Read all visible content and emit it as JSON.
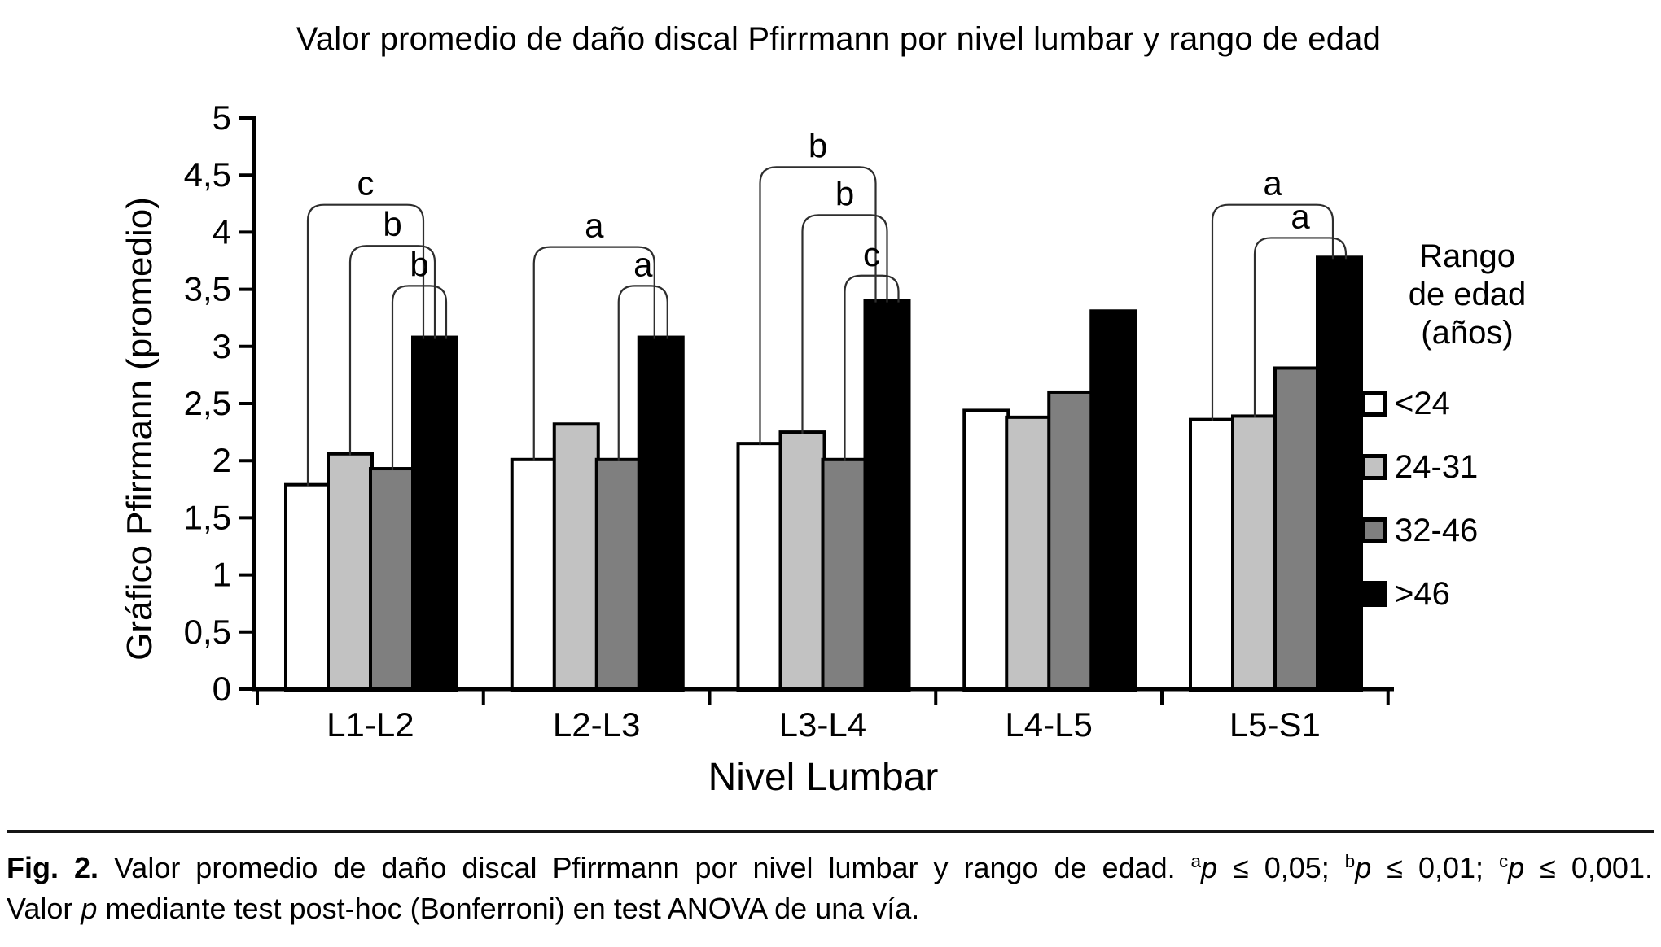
{
  "title": "Valor promedio de daño discal Pfirrmann por nivel lumbar y rango de edad",
  "y_axis": {
    "label": "Gráfico Pfirrmann (promedio)",
    "tick_labels": [
      "5",
      "4,5",
      "4",
      "3,5",
      "3",
      "2,5",
      "2",
      "1,5",
      "1",
      "0,5",
      "0"
    ],
    "tick_values": [
      5,
      4.5,
      4,
      3.5,
      3,
      2.5,
      2,
      1.5,
      1,
      0.5,
      0
    ]
  },
  "x_axis": {
    "label": "Nivel Lumbar"
  },
  "legend": {
    "title_lines": [
      "Rango",
      "de edad",
      "(años)"
    ],
    "items": [
      {
        "label": "<24",
        "color": "#ffffff"
      },
      {
        "label": "24-31",
        "color": "#c2c2c2"
      },
      {
        "label": "32-46",
        "color": "#7f7f7f"
      },
      {
        "label": ">46",
        "color": "#000000"
      }
    ]
  },
  "chart_data": {
    "type": "bar",
    "title": "Valor promedio de daño discal Pfirrmann por nivel lumbar y rango de edad",
    "xlabel": "Nivel Lumbar",
    "ylabel": "Gráfico Pfirrmann (promedio)",
    "ylim": [
      0,
      5
    ],
    "ytick_step": 0.5,
    "grid": false,
    "legend_position": "right",
    "categories": [
      "L1-L2",
      "L2-L3",
      "L3-L4",
      "L4-L5",
      "L5-S1"
    ],
    "series": [
      {
        "name": "<24",
        "color": "#ffffff",
        "values": [
          1.79,
          2.01,
          2.15,
          2.44,
          2.36
        ]
      },
      {
        "name": "24-31",
        "color": "#c2c2c2",
        "values": [
          2.06,
          2.32,
          2.25,
          2.38,
          2.39
        ]
      },
      {
        "name": "32-46",
        "color": "#7f7f7f",
        "values": [
          1.93,
          2.01,
          2.01,
          2.6,
          2.81
        ]
      },
      {
        "name": ">46",
        "color": "#000000",
        "values": [
          3.08,
          3.08,
          3.4,
          3.31,
          3.78
        ]
      }
    ],
    "significance_brackets": [
      {
        "category": 0,
        "from": 0,
        "to": 3,
        "label": "c",
        "level": 4.24
      },
      {
        "category": 0,
        "from": 1,
        "to": 3,
        "label": "b",
        "level": 3.88
      },
      {
        "category": 0,
        "from": 2,
        "to": 3,
        "label": "b",
        "level": 3.53
      },
      {
        "category": 1,
        "from": 0,
        "to": 3,
        "label": "a",
        "level": 3.87
      },
      {
        "category": 1,
        "from": 2,
        "to": 3,
        "label": "a",
        "level": 3.53
      },
      {
        "category": 2,
        "from": 0,
        "to": 3,
        "label": "b",
        "level": 4.57
      },
      {
        "category": 2,
        "from": 1,
        "to": 3,
        "label": "b",
        "level": 4.15
      },
      {
        "category": 2,
        "from": 2,
        "to": 3,
        "label": "c",
        "level": 3.62
      },
      {
        "category": 4,
        "from": 0,
        "to": 3,
        "label": "a",
        "level": 4.24
      },
      {
        "category": 4,
        "from": 1,
        "to": 3,
        "label": "a",
        "level": 3.95
      }
    ]
  },
  "caption": {
    "line1": [
      {
        "text": "Fig. 2.",
        "bold": true
      },
      {
        "text": " Valor promedio de daño discal Pfirrmann por nivel lumbar y rango de edad. "
      },
      {
        "text": "a",
        "sup": true
      },
      {
        "text": "p",
        "italic": true
      },
      {
        "text": " ≤ 0,05; "
      },
      {
        "text": "b",
        "sup": true
      },
      {
        "text": "p",
        "italic": true
      },
      {
        "text": " ≤ 0,01; "
      },
      {
        "text": "c",
        "sup": true
      },
      {
        "text": "p",
        "italic": true
      },
      {
        "text": " ≤ 0,001."
      }
    ],
    "line2": [
      {
        "text": "Valor "
      },
      {
        "text": "p",
        "italic": true
      },
      {
        "text": " mediante test post-hoc (Bonferroni) en test ANOVA de una vía."
      }
    ]
  }
}
